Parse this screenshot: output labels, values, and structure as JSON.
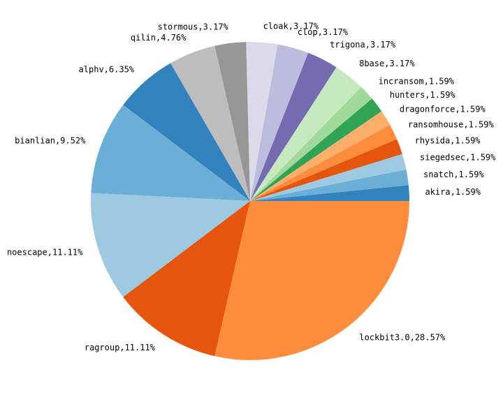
{
  "chart_data": {
    "type": "pie",
    "labels": [
      "akira,1.59%",
      "snatch,1.59%",
      "siegedsec,1.59%",
      "rhysida,1.59%",
      "ransomhouse,1.59%",
      "dragonforce,1.59%",
      "hunters,1.59%",
      "incransom,1.59%",
      "8base,3.17%",
      "trigona,3.17%",
      "clop,3.17%",
      "cloak,3.17%",
      "stormous,3.17%",
      "qilin,4.76%",
      "alphv,6.35%",
      "bianlian,9.52%",
      "noescape,11.11%",
      "ragroup,11.11%",
      "lockbit3.0,28.57%"
    ],
    "values": [
      1.59,
      1.59,
      1.59,
      1.59,
      1.59,
      1.59,
      1.59,
      1.59,
      3.17,
      3.17,
      3.17,
      3.17,
      3.17,
      4.76,
      6.35,
      9.52,
      11.11,
      11.11,
      28.57
    ],
    "colors": [
      "#3182bd",
      "#6baed6",
      "#9ecae1",
      "#e6550d",
      "#fd8d3c",
      "#fdae6b",
      "#31a354",
      "#a1d99b",
      "#c7e9c0",
      "#756bb1",
      "#bcbddc",
      "#dadaeb",
      "#969696",
      "#bdbdbd",
      "#3182bd",
      "#6baed6",
      "#9ecae1",
      "#e6550d",
      "#fd8d3c"
    ]
  }
}
